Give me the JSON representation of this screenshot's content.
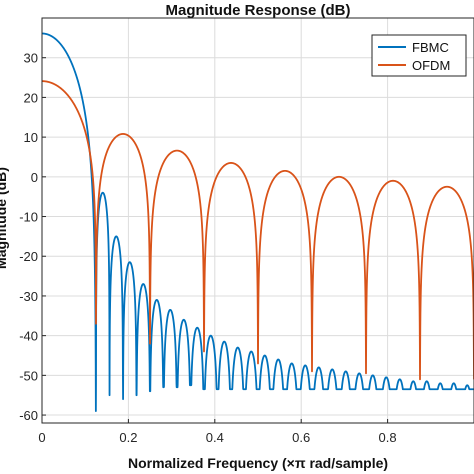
{
  "chart_data": {
    "type": "line",
    "title": "Magnitude Response (dB)",
    "xlabel": "Normalized Frequency (×π rad/sample)",
    "ylabel": "Magnitude (dB)",
    "xlim": [
      0,
      1
    ],
    "ylim": [
      -62,
      40
    ],
    "xticks": [
      "0",
      "0.2",
      "0.4",
      "0.6",
      "0.8"
    ],
    "xtick_values": [
      0,
      0.2,
      0.4,
      0.6,
      0.8
    ],
    "yticks": [
      "30",
      "20",
      "10",
      "0",
      "-10",
      "-20",
      "-30",
      "-40",
      "-50",
      "-60"
    ],
    "ytick_values": [
      30,
      20,
      10,
      0,
      -10,
      -20,
      -30,
      -40,
      -50,
      -60
    ],
    "grid": true,
    "legend_position": "top-right",
    "series": [
      {
        "name": "FBMC",
        "color": "#0072BD",
        "main_lobe_peak_db": 36.1,
        "first_null": 0.125,
        "null_spacing": 0.03125,
        "sidelobe_peak_db": [
          -4,
          -15,
          -21.5,
          -27,
          -31,
          -33.5,
          -36,
          -38,
          -40,
          -41.5,
          -43,
          -44,
          -45,
          -46,
          -47,
          -47.5,
          -48,
          -48.5,
          -49,
          -49.5,
          -50,
          -50.5,
          -51,
          -51.5,
          -51.5,
          -52,
          -52
        ],
        "floor_db": -52.5,
        "null_depth_db": [
          -52,
          -55,
          -56,
          -55,
          -54,
          -53,
          -53,
          -52.5
        ]
      },
      {
        "name": "OFDM",
        "color": "#D95319",
        "main_lobe_peak_db": 24.1,
        "first_null": 0.125,
        "null_spacing": 0.125,
        "sidelobe_peak_db": [
          10.8,
          6.6,
          3.5,
          1.5,
          0,
          -1.0,
          -2.5
        ],
        "null_depth_db": [
          -37,
          -42,
          -44,
          -47,
          -49,
          -49.5,
          -51
        ]
      }
    ]
  }
}
